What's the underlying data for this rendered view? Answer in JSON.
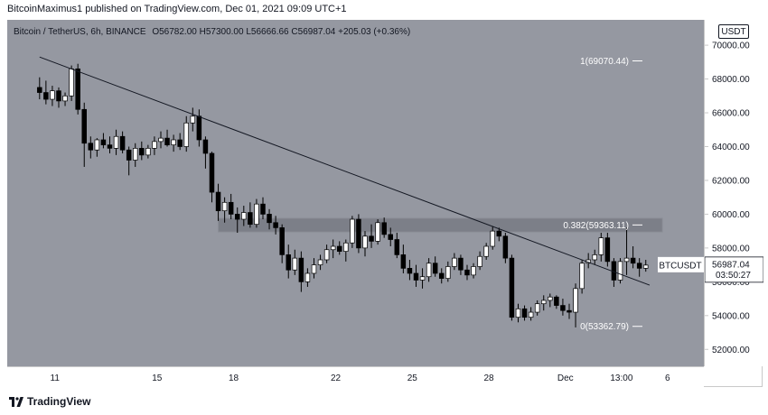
{
  "header": {
    "publisher_line": "BitcoinMaximus1 published on TradingView.com, Dec 01, 2021 09:09 UTC+1"
  },
  "legend": {
    "symbol": "Bitcoin / TetherUS, 6h, BINANCE",
    "o_label": "O",
    "o": "56782.00",
    "h_label": "H",
    "h": "57300.00",
    "l_label": "L",
    "l": "56666.66",
    "c_label": "C",
    "c": "56987.04",
    "change": "+205.03 (+0.36%)"
  },
  "currency_button": "USDT",
  "footer": {
    "brand": "TradingView"
  },
  "colors": {
    "background": "#9598a1",
    "up": "#ffffff",
    "down": "#000000",
    "zone": "#7c7f88"
  },
  "chart_data": {
    "type": "candlestick",
    "y_axis": {
      "min": 51000,
      "max": 71500,
      "ticks": [
        52000,
        54000,
        56000,
        58000,
        60000,
        62000,
        64000,
        66000,
        68000,
        70000
      ],
      "tick_labels": [
        "52000.00",
        "54000.00",
        "56000.00",
        "58000.00",
        "60000.00",
        "62000.00",
        "64000.00",
        "66000.00",
        "68000.00",
        "70000.00"
      ]
    },
    "x_axis": {
      "first_bar_day": 10.4,
      "bars_per_day": 4,
      "ticks": [
        {
          "day": 11,
          "label": "11"
        },
        {
          "day": 15,
          "label": "15"
        },
        {
          "day": 18,
          "label": "18"
        },
        {
          "day": 22,
          "label": "22"
        },
        {
          "day": 25,
          "label": "25"
        },
        {
          "day": 28,
          "label": "28"
        },
        {
          "day": 31,
          "label": "Dec"
        },
        {
          "day": 33.2,
          "label": "13:00"
        },
        {
          "day": 35,
          "label": "6"
        }
      ]
    },
    "candles": [
      [
        67500,
        68100,
        66800,
        67200
      ],
      [
        67200,
        67900,
        66500,
        66800
      ],
      [
        66800,
        67600,
        66400,
        67300
      ],
      [
        67300,
        67500,
        66300,
        66700
      ],
      [
        66700,
        67200,
        66400,
        67000
      ],
      [
        67000,
        68800,
        66700,
        68600
      ],
      [
        68600,
        68900,
        65900,
        66200
      ],
      [
        66200,
        66600,
        62800,
        64200
      ],
      [
        64200,
        64600,
        63300,
        63800
      ],
      [
        63800,
        64500,
        63400,
        64400
      ],
      [
        64400,
        64800,
        63900,
        64100
      ],
      [
        64100,
        64600,
        63600,
        63900
      ],
      [
        63900,
        65000,
        63500,
        64600
      ],
      [
        64600,
        64900,
        63600,
        63800
      ],
      [
        63800,
        64000,
        62300,
        63200
      ],
      [
        63200,
        64200,
        62800,
        63900
      ],
      [
        63900,
        64300,
        63200,
        63500
      ],
      [
        63500,
        64100,
        63300,
        63900
      ],
      [
        63900,
        64600,
        63500,
        64300
      ],
      [
        64300,
        64900,
        63900,
        64500
      ],
      [
        64500,
        65000,
        64000,
        64100
      ],
      [
        64100,
        64700,
        63700,
        64400
      ],
      [
        64400,
        64800,
        63800,
        64000
      ],
      [
        64000,
        65800,
        63700,
        65400
      ],
      [
        65400,
        66300,
        64900,
        65800
      ],
      [
        65800,
        66200,
        64000,
        64400
      ],
      [
        64400,
        64600,
        62700,
        63600
      ],
      [
        63600,
        63700,
        60700,
        61300
      ],
      [
        61300,
        61800,
        59600,
        60200
      ],
      [
        60200,
        61000,
        59500,
        60700
      ],
      [
        60700,
        61200,
        59700,
        60000
      ],
      [
        60000,
        60400,
        58900,
        59700
      ],
      [
        59700,
        60500,
        59300,
        60100
      ],
      [
        60100,
        60700,
        59200,
        59400
      ],
      [
        59400,
        60900,
        59200,
        60600
      ],
      [
        60600,
        61000,
        59700,
        60000
      ],
      [
        60000,
        60300,
        59100,
        59500
      ],
      [
        59500,
        59900,
        58800,
        59200
      ],
      [
        59200,
        59400,
        57100,
        57600
      ],
      [
        57600,
        58200,
        56200,
        56700
      ],
      [
        56700,
        57900,
        56400,
        57400
      ],
      [
        57400,
        57800,
        55400,
        56000
      ],
      [
        56000,
        56800,
        55700,
        56500
      ],
      [
        56500,
        57400,
        56200,
        57000
      ],
      [
        57000,
        57600,
        56700,
        57300
      ],
      [
        57300,
        58200,
        57100,
        57900
      ],
      [
        57900,
        58500,
        57400,
        58100
      ],
      [
        58100,
        58400,
        57600,
        57800
      ],
      [
        57800,
        58500,
        57200,
        58300
      ],
      [
        58300,
        59900,
        58000,
        59700
      ],
      [
        59700,
        60000,
        57700,
        58000
      ],
      [
        58000,
        59000,
        57500,
        58700
      ],
      [
        58700,
        59400,
        58000,
        58400
      ],
      [
        58400,
        59700,
        58200,
        59500
      ],
      [
        59500,
        59800,
        58600,
        58800
      ],
      [
        58800,
        59200,
        58100,
        58500
      ],
      [
        58500,
        58900,
        57400,
        57600
      ],
      [
        57600,
        58200,
        56500,
        56800
      ],
      [
        56800,
        57300,
        56100,
        56500
      ],
      [
        56500,
        57000,
        55700,
        56100
      ],
      [
        56100,
        56800,
        55600,
        56300
      ],
      [
        56300,
        57400,
        56000,
        57100
      ],
      [
        57100,
        57500,
        56300,
        56500
      ],
      [
        56500,
        56800,
        55900,
        56200
      ],
      [
        56200,
        57200,
        56000,
        56900
      ],
      [
        56900,
        57700,
        56700,
        57400
      ],
      [
        57400,
        57600,
        56400,
        56700
      ],
      [
        56700,
        57000,
        56100,
        56400
      ],
      [
        56400,
        57100,
        56200,
        56900
      ],
      [
        56900,
        57800,
        56700,
        57500
      ],
      [
        57500,
        58300,
        57300,
        58100
      ],
      [
        58100,
        59300,
        57900,
        59000
      ],
      [
        59000,
        59200,
        58400,
        58700
      ],
      [
        58700,
        58900,
        57100,
        57400
      ],
      [
        57400,
        57600,
        53700,
        53900
      ],
      [
        53900,
        54700,
        53600,
        54400
      ],
      [
        54400,
        54600,
        53700,
        53900
      ],
      [
        53900,
        54500,
        53700,
        54200
      ],
      [
        54200,
        54900,
        54000,
        54700
      ],
      [
        54700,
        55200,
        54300,
        54900
      ],
      [
        54900,
        55300,
        54500,
        55100
      ],
      [
        55100,
        55200,
        54400,
        54600
      ],
      [
        54600,
        55000,
        54000,
        54300
      ],
      [
        54300,
        54700,
        53800,
        54200
      ],
      [
        54200,
        55900,
        53300,
        55600
      ],
      [
        55600,
        57300,
        55300,
        57100
      ],
      [
        57100,
        57700,
        56800,
        57300
      ],
      [
        57300,
        57900,
        57000,
        57600
      ],
      [
        57600,
        58900,
        57200,
        58600
      ],
      [
        58600,
        58900,
        56900,
        57200
      ],
      [
        57200,
        57400,
        55700,
        56100
      ],
      [
        56100,
        57400,
        55900,
        57200
      ],
      [
        57200,
        59200,
        56400,
        57400
      ],
      [
        57400,
        58100,
        56800,
        57100
      ],
      [
        57100,
        57400,
        56300,
        56800
      ],
      [
        56800,
        57300,
        56600,
        56987
      ]
    ],
    "trendline": {
      "start": {
        "day": 10.4,
        "price": 69300
      },
      "end": {
        "day": 34.3,
        "price": 55800
      }
    },
    "fib_zone": {
      "from_day": 17.4,
      "to_day": 34.8,
      "low": 58950,
      "high": 59760
    },
    "fib_levels": [
      {
        "label": "1(69070.44)",
        "price": 69070.44
      },
      {
        "label": "0.382(59363.11)",
        "price": 59363.11
      },
      {
        "label": "0(53362.79)",
        "price": 53362.79
      }
    ],
    "last_price": {
      "label": "BTCUSDT",
      "value": "56987.04",
      "countdown": "03:50:27",
      "price": 56987.04
    }
  }
}
